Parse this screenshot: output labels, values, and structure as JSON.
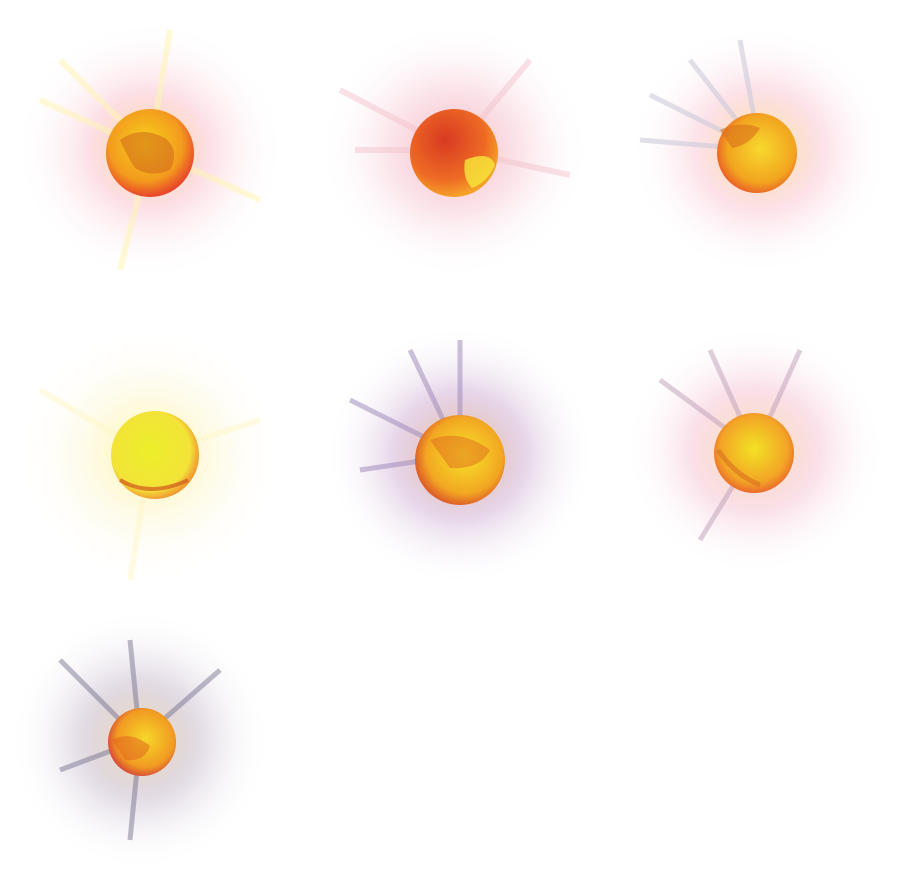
{
  "sprite_sheet": {
    "columns": 3,
    "rows": 3,
    "frames": [
      {
        "id": 1,
        "core": "#f6d21a",
        "mid": "#f39a1e",
        "rim": "#e8442a",
        "glow": "#ffe86a",
        "halo": "#f6a6b8",
        "streak": "#fff6b0",
        "crack": "#d0661c"
      },
      {
        "id": 2,
        "core": "#d83a22",
        "mid": "#ee6a24",
        "rim": "#f5a128",
        "glow": "#f7b0b8",
        "halo": "#f3b6c6",
        "streak": "#f4c4cc",
        "crack": "#f7e23a"
      },
      {
        "id": 3,
        "core": "#f7d92e",
        "mid": "#f2a41f",
        "rim": "#e9542a",
        "glow": "#fff07a",
        "halo": "#f6aec2",
        "streak": "#c8c8d8",
        "crack": "#d8701c"
      },
      {
        "id": 4,
        "core": "#ecef2a",
        "mid": "#f3e338",
        "rim": "#f07c2e",
        "glow": "#fbf6a0",
        "halo": "#fdf5c8",
        "streak": "#fff8c8",
        "crack": "#d0561e"
      },
      {
        "id": 5,
        "core": "#f7e228",
        "mid": "#f2a722",
        "rim": "#d8482a",
        "glow": "#ffd27a",
        "halo": "#b07ab8",
        "streak": "#9a86b8",
        "crack": "#e06a1e"
      },
      {
        "id": 6,
        "core": "#f2e224",
        "mid": "#f3a426",
        "rim": "#e8542c",
        "glow": "#fff0a0",
        "halo": "#f0a8c0",
        "streak": "#c0a0b8",
        "crack": "#d8701e"
      },
      {
        "id": 7,
        "core": "#f6d828",
        "mid": "#f19a22",
        "rim": "#d23a3a",
        "glow": "#fff0b0",
        "halo": "#9c84a8",
        "streak": "#6e6a88",
        "crack": "#e0601e"
      }
    ]
  }
}
